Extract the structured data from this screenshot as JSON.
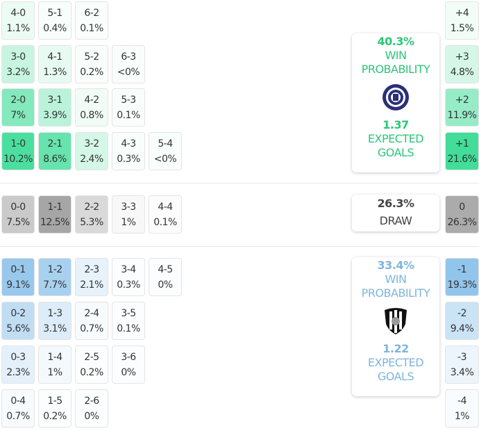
{
  "colors": {
    "home": "#3ddc97",
    "away": "#8ec3ea",
    "draw": "#a6a6a6",
    "home_text": "#2dc57a",
    "away_text": "#7fb5dc"
  },
  "home": {
    "rows": [
      [
        {
          "score": "4-0",
          "pct": "1.1%"
        },
        {
          "score": "5-1",
          "pct": "0.4%"
        },
        {
          "score": "6-2",
          "pct": "0.1%"
        }
      ],
      [
        {
          "score": "3-0",
          "pct": "3.2%"
        },
        {
          "score": "4-1",
          "pct": "1.3%"
        },
        {
          "score": "5-2",
          "pct": "0.2%"
        },
        {
          "score": "6-3",
          "pct": "<0%"
        }
      ],
      [
        {
          "score": "2-0",
          "pct": "7%"
        },
        {
          "score": "3-1",
          "pct": "3.9%"
        },
        {
          "score": "4-2",
          "pct": "0.8%"
        },
        {
          "score": "5-3",
          "pct": "0.1%"
        }
      ],
      [
        {
          "score": "1-0",
          "pct": "10.2%"
        },
        {
          "score": "2-1",
          "pct": "8.6%"
        },
        {
          "score": "3-2",
          "pct": "2.4%"
        },
        {
          "score": "4-3",
          "pct": "0.3%"
        },
        {
          "score": "5-4",
          "pct": "<0%"
        }
      ]
    ],
    "margins": [
      {
        "label": "+4",
        "pct": "1.5%"
      },
      {
        "label": "+3",
        "pct": "4.8%"
      },
      {
        "label": "+2",
        "pct": "11.9%"
      },
      {
        "label": "+1",
        "pct": "21.6%"
      }
    ],
    "win_pct": "40.3%",
    "win_label_1": "WIN",
    "win_label_2": "PROBABILITY",
    "xg": "1.37",
    "xg_label_1": "EXPECTED",
    "xg_label_2": "GOALS",
    "logo": "team-crest-icon"
  },
  "draw": {
    "row": [
      {
        "score": "0-0",
        "pct": "7.5%"
      },
      {
        "score": "1-1",
        "pct": "12.5%"
      },
      {
        "score": "2-2",
        "pct": "5.3%"
      },
      {
        "score": "3-3",
        "pct": "1%"
      },
      {
        "score": "4-4",
        "pct": "0.1%"
      }
    ],
    "margin": {
      "label": "0",
      "pct": "26.3%"
    },
    "pct": "26.3%",
    "label": "DRAW"
  },
  "away": {
    "rows": [
      [
        {
          "score": "0-1",
          "pct": "9.1%"
        },
        {
          "score": "1-2",
          "pct": "7.7%"
        },
        {
          "score": "2-3",
          "pct": "2.1%"
        },
        {
          "score": "3-4",
          "pct": "0.3%"
        },
        {
          "score": "4-5",
          "pct": "0%"
        }
      ],
      [
        {
          "score": "0-2",
          "pct": "5.6%"
        },
        {
          "score": "1-3",
          "pct": "3.1%"
        },
        {
          "score": "2-4",
          "pct": "0.7%"
        },
        {
          "score": "3-5",
          "pct": "0.1%"
        }
      ],
      [
        {
          "score": "0-3",
          "pct": "2.3%"
        },
        {
          "score": "1-4",
          "pct": "1%"
        },
        {
          "score": "2-5",
          "pct": "0.2%"
        },
        {
          "score": "3-6",
          "pct": "0%"
        }
      ],
      [
        {
          "score": "0-4",
          "pct": "0.7%"
        },
        {
          "score": "1-5",
          "pct": "0.2%"
        },
        {
          "score": "2-6",
          "pct": "0%"
        }
      ]
    ],
    "margins": [
      {
        "label": "-1",
        "pct": "19.3%"
      },
      {
        "label": "-2",
        "pct": "9.4%"
      },
      {
        "label": "-3",
        "pct": "3.4%"
      },
      {
        "label": "-4",
        "pct": "1%"
      }
    ],
    "win_pct": "33.4%",
    "win_label_1": "WIN",
    "win_label_2": "PROBABILITY",
    "xg": "1.22",
    "xg_label_1": "EXPECTED",
    "xg_label_2": "GOALS",
    "logo": "shield-crest-icon"
  }
}
